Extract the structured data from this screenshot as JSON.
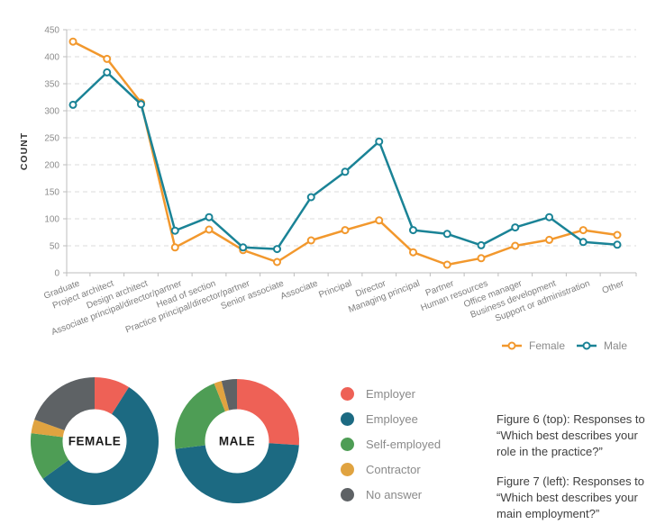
{
  "colors": {
    "female_line": "#F2982D",
    "male_line": "#1A8396",
    "grid": "#DBDBDB",
    "axis": "#BDBDBD",
    "tick_text": "#8C8C8C",
    "xlabel_text": "#7E7E7E",
    "legend_text": "#8A8A8A",
    "count_label": "#333333",
    "donut_label": "#1A1A1A",
    "employer": "#EE6156",
    "employee": "#1C6A82",
    "self_employed": "#4E9D55",
    "contractor": "#E0A340",
    "no_answer": "#5E6265"
  },
  "chart_data": [
    {
      "type": "line",
      "title": "",
      "xlabel": "",
      "ylabel": "COUNT",
      "ylim": [
        0,
        450
      ],
      "ytick_step": 50,
      "grid": "horizontal dashed",
      "legend_position": "bottom-right",
      "categories": [
        "Graduate",
        "Project architect",
        "Design architect",
        "Associate principal/director/partner",
        "Head of section",
        "Practice principal/director/partner",
        "Senior associate",
        "Associate",
        "Principal",
        "Director",
        "Managing principal",
        "Partner",
        "Human resources",
        "Office manager",
        "Business development",
        "Support or administration",
        "Other"
      ],
      "series": [
        {
          "name": "Female",
          "color_key": "female_line",
          "values": [
            428,
            396,
            315,
            47,
            80,
            42,
            20,
            60,
            79,
            97,
            38,
            15,
            27,
            50,
            61,
            79,
            70
          ]
        },
        {
          "name": "Male",
          "color_key": "male_line",
          "values": [
            311,
            371,
            312,
            78,
            103,
            47,
            44,
            140,
            187,
            243,
            79,
            72,
            51,
            84,
            103,
            57,
            52
          ]
        }
      ]
    },
    {
      "type": "donut",
      "label": "FEMALE",
      "slices": [
        {
          "name": "Employer",
          "pct": 9,
          "color_key": "employer"
        },
        {
          "name": "Employee",
          "pct": 56,
          "color_key": "employee"
        },
        {
          "name": "Self-employed",
          "pct": 12,
          "color_key": "self_employed"
        },
        {
          "name": "Contractor",
          "pct": 3.5,
          "color_key": "contractor"
        },
        {
          "name": "No answer",
          "pct": 19.5,
          "color_key": "no_answer"
        }
      ]
    },
    {
      "type": "donut",
      "label": "MALE",
      "slices": [
        {
          "name": "Employer",
          "pct": 26,
          "color_key": "employer"
        },
        {
          "name": "Employee",
          "pct": 47,
          "color_key": "employee"
        },
        {
          "name": "Self-employed",
          "pct": 21,
          "color_key": "self_employed"
        },
        {
          "name": "Contractor",
          "pct": 2,
          "color_key": "contractor"
        },
        {
          "name": "No answer",
          "pct": 4,
          "color_key": "no_answer"
        }
      ]
    }
  ],
  "employment_legend": {
    "items": [
      {
        "label": "Employer",
        "color_key": "employer"
      },
      {
        "label": "Employee",
        "color_key": "employee"
      },
      {
        "label": "Self-employed",
        "color_key": "self_employed"
      },
      {
        "label": "Contractor",
        "color_key": "contractor"
      },
      {
        "label": "No answer",
        "color_key": "no_answer"
      }
    ]
  },
  "captions": {
    "figure6": "Figure 6 (top): Responses to “Which best describes your role in the practice?”",
    "figure7": "Figure 7 (left): Responses to “Which best describes your main employment?”"
  }
}
